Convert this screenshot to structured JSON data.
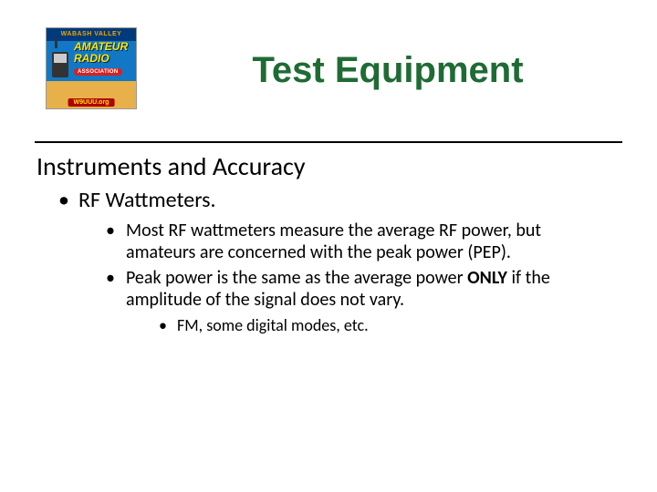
{
  "colors": {
    "title": "#1f6b34",
    "text": "#000000",
    "background": "#ffffff",
    "divider": "#000000"
  },
  "typography": {
    "title_family": "Arial",
    "title_weight": "bold",
    "title_size_pt": 30,
    "body_family": "Calibri",
    "h2_size_pt": 21,
    "lvl1_size_pt": 18,
    "lvl2_size_pt": 15,
    "lvl3_size_pt": 13.5
  },
  "logo": {
    "top_bar": "WABASH VALLEY",
    "line1": "AMATEUR",
    "line2": "RADIO",
    "assoc": "ASSOCIATION",
    "callsign": "W9UUU.org",
    "colors": {
      "top_bar_bg": "#003a7a",
      "top_bar_text": "#f0a500",
      "mid_bg": "#1278c5",
      "mid_text": "#ffe600",
      "assoc_bg": "#d92020",
      "bottom_bg": "#e8b04a",
      "call_bg": "#b00000",
      "call_text": "#ffe600"
    }
  },
  "title": "Test Equipment",
  "subtitle": "Instruments and Accuracy",
  "bullets": {
    "l1_0": "RF Wattmeters.",
    "l2_0": "Most RF wattmeters measure the average RF power, but amateurs are concerned with the peak power (PEP).",
    "l2_1_pre": "Peak power is the same as the average power ",
    "l2_1_bold": "ONLY",
    "l2_1_post": " if the amplitude of the signal does not vary.",
    "l3_0": "FM, some digital modes, etc."
  }
}
